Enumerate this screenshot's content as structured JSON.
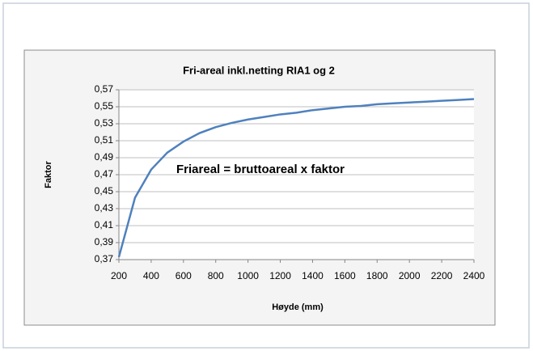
{
  "chart_data": {
    "type": "line",
    "title": "Fri-areal inkl.netting RIA1 og 2",
    "xlabel": "Høyde (mm)",
    "ylabel": "Faktor",
    "annotation": "Friareal = bruttoareal x faktor",
    "x": [
      200,
      300,
      400,
      500,
      600,
      700,
      800,
      900,
      1000,
      1100,
      1200,
      1300,
      1400,
      1500,
      1600,
      1700,
      1800,
      1900,
      2000,
      2100,
      2200,
      2300,
      2400
    ],
    "series": [
      {
        "color": "#4f81bd",
        "values": [
          0.373,
          0.443,
          0.476,
          0.496,
          0.509,
          0.519,
          0.526,
          0.531,
          0.535,
          0.538,
          0.541,
          0.543,
          0.546,
          0.548,
          0.55,
          0.551,
          0.553,
          0.554,
          0.555,
          0.556,
          0.557,
          0.558,
          0.559
        ]
      }
    ],
    "xlim": [
      200,
      2400
    ],
    "xticks": [
      200,
      400,
      600,
      800,
      1000,
      1200,
      1400,
      1600,
      1800,
      2000,
      2200,
      2400
    ],
    "ylim": [
      0.37,
      0.57
    ],
    "yticks": [
      {
        "value": 0.37,
        "label": "0,37"
      },
      {
        "value": 0.39,
        "label": "0,39"
      },
      {
        "value": 0.41,
        "label": "0,41"
      },
      {
        "value": 0.43,
        "label": "0,43"
      },
      {
        "value": 0.45,
        "label": "0,45"
      },
      {
        "value": 0.47,
        "label": "0,47"
      },
      {
        "value": 0.49,
        "label": "0,49"
      },
      {
        "value": 0.51,
        "label": "0,51"
      },
      {
        "value": 0.53,
        "label": "0,53"
      },
      {
        "value": 0.55,
        "label": "0,55"
      },
      {
        "value": 0.57,
        "label": "0,57"
      }
    ],
    "grid": true
  }
}
